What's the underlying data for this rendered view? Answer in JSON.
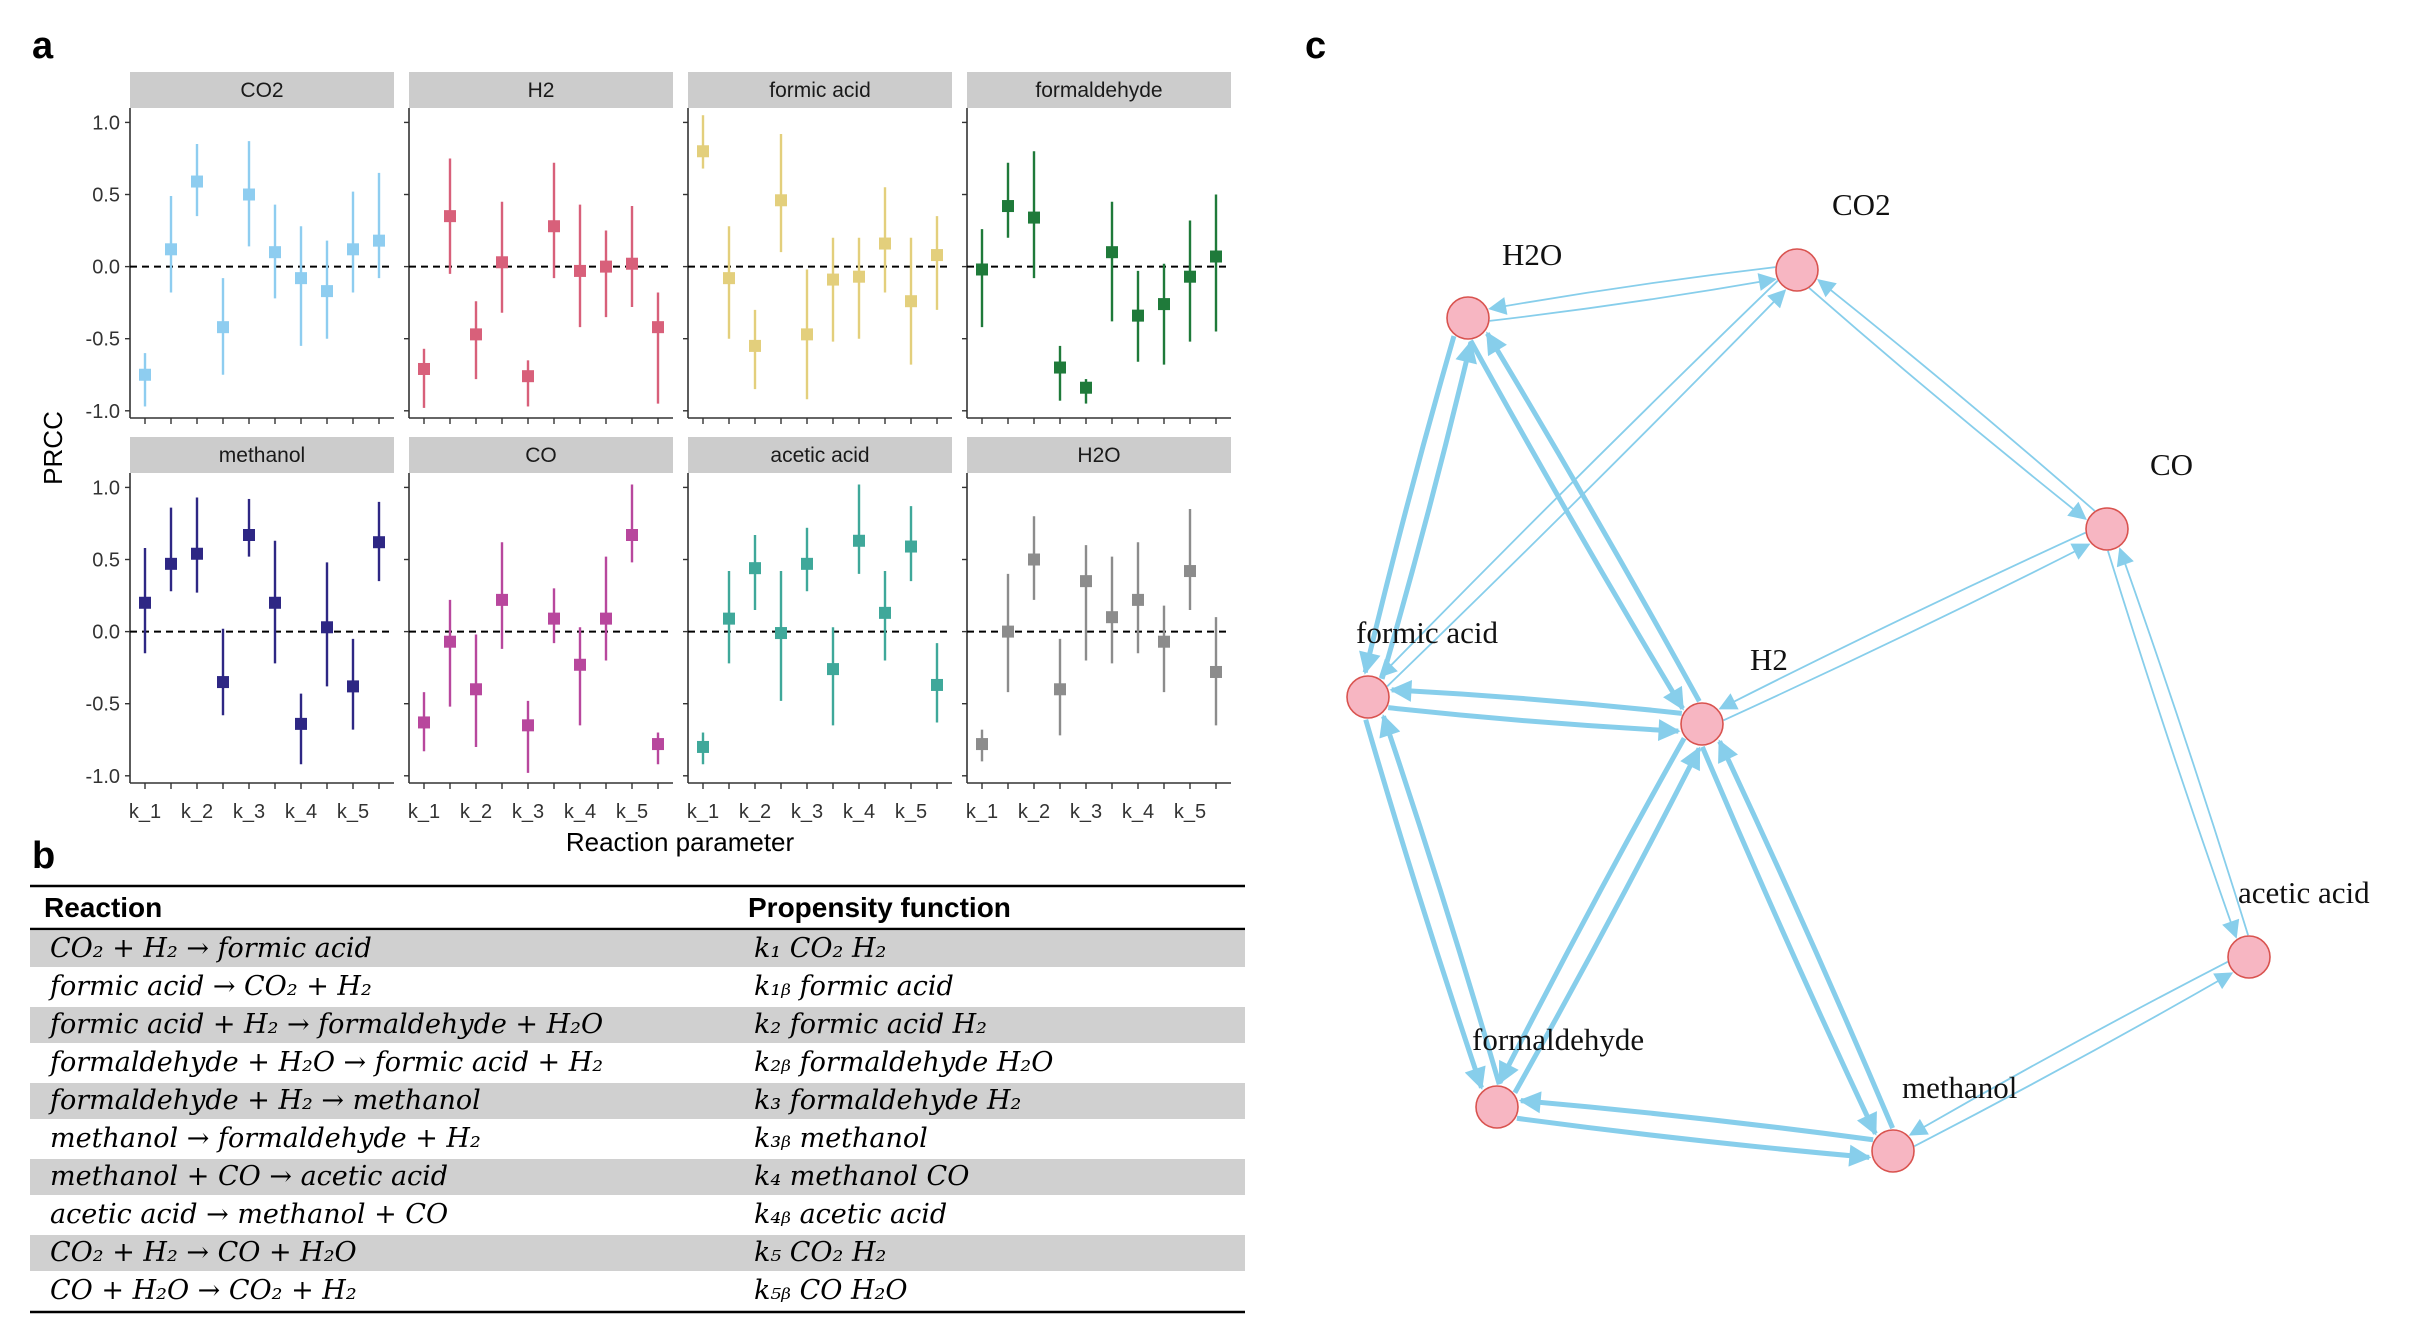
{
  "panel_labels": {
    "a": "a",
    "b": "b",
    "c": "c"
  },
  "chart_data": {
    "type": "scatter",
    "subtype": "point-range facets",
    "xlabel": "Reaction parameter",
    "ylabel": "PRCC",
    "ylim": [
      -1.05,
      1.1
    ],
    "yticks": [
      1.0,
      0.5,
      0.0,
      -0.5,
      -1.0
    ],
    "ytick_labels": [
      "1.0",
      "0.5",
      "0.0",
      "-0.5",
      "-1.0"
    ],
    "x_tick_labels": [
      "k_1",
      "k_2",
      "k_3",
      "k_4",
      "k_5"
    ],
    "reference_line": 0,
    "params": [
      "k_1",
      "k_1b",
      "k_2",
      "k_2b",
      "k_3",
      "k_3b",
      "k_4",
      "k_4b",
      "k_5",
      "k_5b"
    ],
    "facets": [
      {
        "name": "CO2",
        "color": "#8ecdf0",
        "values": [
          -0.75,
          0.12,
          0.59,
          -0.42,
          0.5,
          0.1,
          -0.08,
          -0.17,
          0.12,
          0.18
        ],
        "low": [
          -0.97,
          -0.18,
          0.35,
          -0.75,
          0.14,
          -0.22,
          -0.55,
          -0.5,
          -0.18,
          -0.08
        ],
        "high": [
          -0.6,
          0.49,
          0.85,
          -0.08,
          0.87,
          0.43,
          0.28,
          0.18,
          0.52,
          0.65
        ]
      },
      {
        "name": "H2",
        "color": "#d8607a",
        "values": [
          -0.71,
          0.35,
          -0.47,
          0.03,
          -0.76,
          0.28,
          -0.03,
          0.0,
          0.02,
          -0.42
        ],
        "low": [
          -0.98,
          -0.05,
          -0.78,
          -0.32,
          -0.97,
          -0.08,
          -0.42,
          -0.35,
          -0.28,
          -0.95
        ],
        "high": [
          -0.57,
          0.75,
          -0.24,
          0.45,
          -0.65,
          0.72,
          0.43,
          0.25,
          0.42,
          -0.18
        ]
      },
      {
        "name": "formic acid",
        "color": "#e3cf7c",
        "values": [
          0.8,
          -0.08,
          -0.55,
          0.46,
          -0.47,
          -0.09,
          -0.07,
          0.16,
          -0.24,
          0.08
        ],
        "low": [
          0.68,
          -0.5,
          -0.85,
          0.1,
          -0.92,
          -0.52,
          -0.5,
          -0.18,
          -0.68,
          -0.3
        ],
        "high": [
          1.05,
          0.28,
          -0.3,
          0.92,
          -0.02,
          0.2,
          0.2,
          0.55,
          0.2,
          0.35
        ]
      },
      {
        "name": "formaldehyde",
        "color": "#1f7a3a",
        "values": [
          -0.02,
          0.42,
          0.34,
          -0.7,
          -0.84,
          0.1,
          -0.34,
          -0.26,
          -0.07,
          0.07
        ],
        "low": [
          -0.42,
          0.2,
          -0.08,
          -0.93,
          -0.95,
          -0.38,
          -0.66,
          -0.68,
          -0.52,
          -0.45
        ],
        "high": [
          0.26,
          0.72,
          0.8,
          -0.55,
          -0.78,
          0.45,
          -0.03,
          0.02,
          0.32,
          0.5
        ]
      },
      {
        "name": "methanol",
        "color": "#2e2784",
        "values": [
          0.2,
          0.47,
          0.54,
          -0.35,
          0.67,
          0.2,
          -0.64,
          0.03,
          -0.38,
          0.62
        ],
        "low": [
          -0.15,
          0.28,
          0.27,
          -0.58,
          0.52,
          -0.22,
          -0.92,
          -0.38,
          -0.68,
          0.35
        ],
        "high": [
          0.58,
          0.86,
          0.93,
          0.02,
          0.92,
          0.63,
          -0.43,
          0.48,
          -0.05,
          0.9
        ]
      },
      {
        "name": "CO",
        "color": "#b8479d",
        "values": [
          -0.63,
          -0.07,
          -0.4,
          0.22,
          -0.65,
          0.09,
          -0.23,
          0.09,
          0.67,
          -0.78
        ],
        "low": [
          -0.83,
          -0.52,
          -0.8,
          -0.12,
          -0.98,
          -0.08,
          -0.65,
          -0.2,
          0.48,
          -0.92
        ],
        "high": [
          -0.42,
          0.22,
          -0.02,
          0.62,
          -0.48,
          0.3,
          0.03,
          0.52,
          1.02,
          -0.7
        ]
      },
      {
        "name": "acetic acid",
        "color": "#3fa89a",
        "values": [
          -0.8,
          0.09,
          0.44,
          -0.01,
          0.47,
          -0.26,
          0.63,
          0.13,
          0.59,
          -0.37
        ],
        "low": [
          -0.92,
          -0.22,
          0.15,
          -0.48,
          0.28,
          -0.65,
          0.4,
          -0.2,
          0.35,
          -0.63
        ],
        "high": [
          -0.7,
          0.42,
          0.67,
          0.42,
          0.72,
          0.03,
          1.02,
          0.42,
          0.87,
          -0.08
        ]
      },
      {
        "name": "H2O",
        "color": "#8c8c8c",
        "values": [
          -0.78,
          0.0,
          0.5,
          -0.4,
          0.35,
          0.1,
          0.22,
          -0.07,
          0.42,
          -0.28
        ],
        "low": [
          -0.9,
          -0.42,
          0.22,
          -0.72,
          -0.2,
          -0.22,
          -0.15,
          -0.42,
          0.15,
          -0.65
        ],
        "high": [
          -0.68,
          0.4,
          0.8,
          -0.05,
          0.6,
          0.52,
          0.62,
          0.18,
          0.85,
          0.1
        ]
      }
    ]
  },
  "reaction_table": {
    "headers": [
      "Reaction",
      "Propensity function"
    ],
    "rows": [
      {
        "reaction": "CO₂ + H₂ → formic acid",
        "propensity": "k₁ CO₂ H₂"
      },
      {
        "reaction": "formic acid → CO₂ + H₂",
        "propensity": "k₁ᵦ formic acid"
      },
      {
        "reaction": "formic acid + H₂ → formaldehyde + H₂O",
        "propensity": "k₂ formic acid H₂"
      },
      {
        "reaction": "formaldehyde + H₂O → formic acid + H₂",
        "propensity": "k₂ᵦ formaldehyde H₂O"
      },
      {
        "reaction": "formaldehyde + H₂ → methanol",
        "propensity": "k₃ formaldehyde H₂"
      },
      {
        "reaction": "methanol → formaldehyde + H₂",
        "propensity": "k₃ᵦ methanol"
      },
      {
        "reaction": "methanol + CO → acetic acid",
        "propensity": "k₄ methanol CO"
      },
      {
        "reaction": "acetic acid → methanol + CO",
        "propensity": "k₄ᵦ acetic acid"
      },
      {
        "reaction": "CO₂ + H₂ → CO + H₂O",
        "propensity": "k₅ CO₂ H₂"
      },
      {
        "reaction": "CO + H₂O → CO₂ + H₂",
        "propensity": "k₅ᵦ CO H₂O"
      }
    ]
  },
  "network": {
    "node_color": "#f7b6c2",
    "node_stroke": "#d9534f",
    "edge_color": "#87ceeb",
    "nodes": [
      {
        "id": "H2O",
        "label": "H2O"
      },
      {
        "id": "CO2",
        "label": "CO2"
      },
      {
        "id": "CO",
        "label": "CO"
      },
      {
        "id": "formic acid",
        "label": "formic acid"
      },
      {
        "id": "H2",
        "label": "H2"
      },
      {
        "id": "acetic acid",
        "label": "acetic acid"
      },
      {
        "id": "formaldehyde",
        "label": "formaldehyde"
      },
      {
        "id": "methanol",
        "label": "methanol"
      }
    ],
    "edges": [
      {
        "from": "H2O",
        "to": "CO2",
        "weight": 1
      },
      {
        "from": "CO2",
        "to": "H2O",
        "weight": 1
      },
      {
        "from": "CO2",
        "to": "CO",
        "weight": 1
      },
      {
        "from": "CO",
        "to": "CO2",
        "weight": 1
      },
      {
        "from": "CO2",
        "to": "formic acid",
        "weight": 1
      },
      {
        "from": "formic acid",
        "to": "CO2",
        "weight": 1
      },
      {
        "from": "H2O",
        "to": "formic acid",
        "weight": 2
      },
      {
        "from": "formic acid",
        "to": "H2O",
        "weight": 2
      },
      {
        "from": "H2O",
        "to": "H2",
        "weight": 2
      },
      {
        "from": "H2",
        "to": "H2O",
        "weight": 2
      },
      {
        "from": "CO",
        "to": "H2",
        "weight": 1
      },
      {
        "from": "H2",
        "to": "CO",
        "weight": 1
      },
      {
        "from": "formic acid",
        "to": "H2",
        "weight": 2
      },
      {
        "from": "H2",
        "to": "formic acid",
        "weight": 2
      },
      {
        "from": "formic acid",
        "to": "formaldehyde",
        "weight": 2
      },
      {
        "from": "formaldehyde",
        "to": "formic acid",
        "weight": 2
      },
      {
        "from": "H2",
        "to": "formaldehyde",
        "weight": 2
      },
      {
        "from": "formaldehyde",
        "to": "H2",
        "weight": 2
      },
      {
        "from": "H2",
        "to": "methanol",
        "weight": 2
      },
      {
        "from": "methanol",
        "to": "H2",
        "weight": 2
      },
      {
        "from": "formaldehyde",
        "to": "methanol",
        "weight": 2
      },
      {
        "from": "methanol",
        "to": "formaldehyde",
        "weight": 2
      },
      {
        "from": "CO",
        "to": "acetic acid",
        "weight": 1
      },
      {
        "from": "acetic acid",
        "to": "CO",
        "weight": 1
      },
      {
        "from": "methanol",
        "to": "acetic acid",
        "weight": 1
      },
      {
        "from": "acetic acid",
        "to": "methanol",
        "weight": 1
      }
    ]
  }
}
